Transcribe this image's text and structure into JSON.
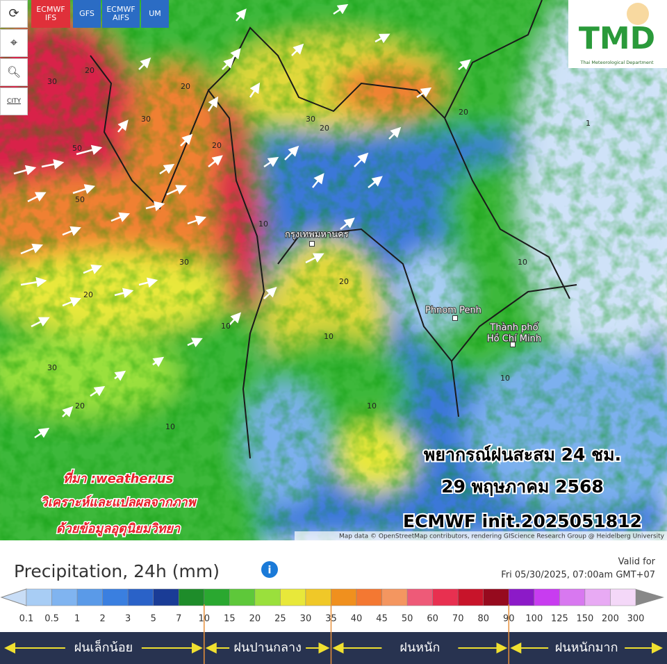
{
  "toolbar": {
    "models": [
      {
        "lines": [
          "ECMWF",
          "IFS"
        ],
        "color": "#e0303a"
      },
      {
        "lines": [
          "GFS"
        ],
        "color": "#2b6cc4"
      },
      {
        "lines": [
          "ECMWF",
          "AIFS"
        ],
        "color": "#2b6cc4"
      },
      {
        "lines": [
          "UM"
        ],
        "color": "#2b6cc4"
      }
    ],
    "city_button": "CITY"
  },
  "logo": {
    "text": "TMD",
    "subtitle": "Thai Meteorological Department"
  },
  "map_labels": {
    "places": [
      "กรุงเทพมหานคร",
      "Phnom Penh",
      "Thành phố",
      "Hồ Chí Minh"
    ],
    "contours": [
      "30",
      "20",
      "50",
      "50",
      "20",
      "30",
      "20",
      "30",
      "20",
      "30",
      "20",
      "10",
      "10",
      "20",
      "30",
      "20",
      "10",
      "20",
      "10",
      "10",
      "1",
      "10",
      "10"
    ]
  },
  "overlay": {
    "title_lines": [
      "พยากรณ์ฝนสะสม 24 ชม.",
      "29 พฤษภาคม 2568",
      "ECMWF init.2025051812"
    ],
    "source_lines": [
      "ที่มา :weather.us",
      "วิเคราะห์และแปลผลจากภาพ",
      "ด้วยข้อมูลอุตุนิยมวิทยา"
    ]
  },
  "attribution": "Map data © OpenStreetMap contributors, rendering GIScience Research Group @ Heidelberg University",
  "legend": {
    "title": "Precipitation, 24h (mm)",
    "valid_label": "Valid for",
    "valid_time": "Fri 05/30/2025, 07:00am GMT+07",
    "ticks": [
      "0.1",
      "0.5",
      "1",
      "2",
      "3",
      "5",
      "7",
      "10",
      "15",
      "20",
      "25",
      "30",
      "35",
      "40",
      "45",
      "50",
      "60",
      "70",
      "80",
      "90",
      "100",
      "125",
      "150",
      "200",
      "300"
    ],
    "colors": [
      "#a8cdf5",
      "#80b4f0",
      "#5a9ae8",
      "#3a7fe0",
      "#2a62c8",
      "#1a3c96",
      "#1e8c2a",
      "#2aa830",
      "#5ec83a",
      "#9ae03c",
      "#e8e83a",
      "#f0c828",
      "#f0901e",
      "#f47832",
      "#f49660",
      "#ee5a78",
      "#e83050",
      "#c8142a",
      "#960a1e",
      "#8c1ac8",
      "#c83cf0",
      "#d878f0",
      "#e8aaf4",
      "#f4d8f8"
    ],
    "classes": [
      "ฝนเล็กน้อย",
      "ฝนปานกลาง",
      "ฝนหนัก",
      "ฝนหนักมาก"
    ]
  }
}
